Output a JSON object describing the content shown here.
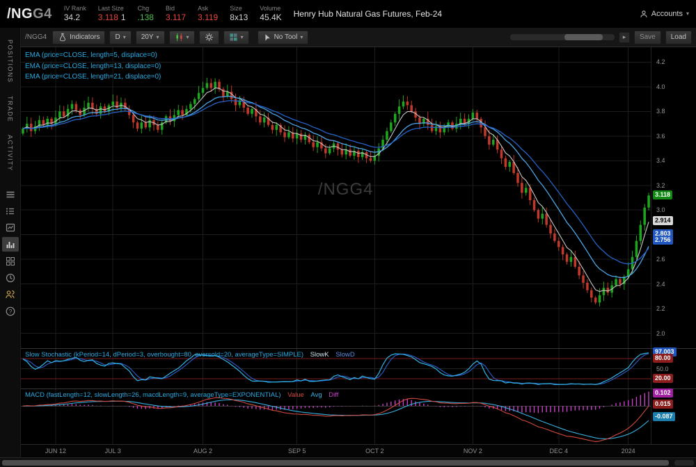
{
  "quote_bar": {
    "symbol_root": "/NG",
    "symbol_suffix": "G4",
    "fields": [
      {
        "label": "IV Rank",
        "parts": [
          {
            "text": "34.2",
            "color": "#d4d4d4"
          }
        ]
      },
      {
        "label": "Last Size",
        "parts": [
          {
            "text": "3.118",
            "color": "#e8463c"
          },
          {
            "text": "1",
            "color": "#d4d4d4"
          }
        ]
      },
      {
        "label": "Chg",
        "parts": [
          {
            "text": ".138",
            "color": "#4fbf4f"
          }
        ]
      },
      {
        "label": "Bid",
        "parts": [
          {
            "text": "3.117",
            "color": "#e8463c"
          }
        ]
      },
      {
        "label": "Ask",
        "parts": [
          {
            "text": "3.119",
            "color": "#e8463c"
          }
        ]
      },
      {
        "label": "Size",
        "parts": [
          {
            "text": "8x13",
            "color": "#d4d4d4"
          }
        ]
      },
      {
        "label": "Volume",
        "parts": [
          {
            "text": "45.4K",
            "color": "#d4d4d4"
          }
        ]
      }
    ],
    "description": "Henry Hub Natural Gas Futures, Feb-24",
    "accounts_label": "Accounts"
  },
  "toolbar": {
    "symbol_label": "/NGG4",
    "indicators_label": "Indicators",
    "timeframe_label": "D",
    "range_label": "20Y",
    "tool_label": "No Tool",
    "save_label": "Save",
    "load_label": "Load"
  },
  "sidebar": {
    "tabs": [
      {
        "label": "POSITIONS"
      },
      {
        "label": "TRADE"
      },
      {
        "label": "ACTIVITY"
      }
    ]
  },
  "studies": {
    "ema_labels": [
      "EMA (price=CLOSE, length=5, displace=0)",
      "EMA (price=CLOSE, length=13, displace=0)",
      "EMA (price=CLOSE, length=21, displace=0)"
    ],
    "stoch_label": "Slow Stochastic (kPeriod=14, dPeriod=3, overbought=80, oversold=20, averageType=SIMPLE)",
    "stoch_plots": [
      {
        "name": "SlowK",
        "color": "#cfe6f2"
      },
      {
        "name": "SlowD",
        "color": "#5b8ee6"
      }
    ],
    "macd_label": "MACD (fastLength=12, slowLength=26, macdLength=9, averageType=EXPONENTIAL)",
    "macd_plots": [
      {
        "name": "Value",
        "color": "#d24a3e"
      },
      {
        "name": "Avg",
        "color": "#38b2e3"
      },
      {
        "name": "Diff",
        "color": "#cc3fcc"
      }
    ]
  },
  "chart_data": {
    "type": "candlestick",
    "watermark": "/NGG4",
    "price_range": [
      1.88,
      4.32
    ],
    "colors": {
      "up": "#1fa51f",
      "down": "#c0392b",
      "ema5": "#c9c9c9",
      "ema13": "#4da6e8",
      "ema21": "#2563c9",
      "grid": "#1d1d1d",
      "stoch_k": "#31b6e7",
      "stoch_d": "#2a5fd0",
      "stoch_level": "#7a2020",
      "macd_value": "#d24a3e",
      "macd_avg": "#38b2e3",
      "macd_diff": "#cc3fcc"
    },
    "price_axis_ticks": [
      4.2,
      4.0,
      3.8,
      3.6,
      3.4,
      3.2,
      3.0,
      2.8,
      2.6,
      2.4,
      2.2,
      2.0
    ],
    "price_badges": [
      {
        "text": "3.118",
        "value": 3.118,
        "bg": "#128912",
        "fg": "#ffffff"
      },
      {
        "text": "2.914",
        "value": 2.914,
        "bg": "#d8d8d8",
        "fg": "#000000"
      },
      {
        "text": "2.803",
        "value": 2.803,
        "bg": "#2057c0",
        "fg": "#ffffff"
      },
      {
        "text": "2.756",
        "value": 2.756,
        "bg": "#2057c0",
        "fg": "#ffffff"
      }
    ],
    "x_ticks": [
      {
        "label": "JUN 12",
        "index": 8
      },
      {
        "label": "JUL 3",
        "index": 22
      },
      {
        "label": "AUG 2",
        "index": 44
      },
      {
        "label": "SEP 5",
        "index": 67
      },
      {
        "label": "OCT 2",
        "index": 86
      },
      {
        "label": "NOV 2",
        "index": 110
      },
      {
        "label": "DEC 4",
        "index": 131
      },
      {
        "label": "2024",
        "index": 148
      }
    ],
    "first_open": 3.62,
    "closes": [
      3.66,
      3.7,
      3.64,
      3.68,
      3.73,
      3.69,
      3.74,
      3.7,
      3.75,
      3.8,
      3.76,
      3.82,
      3.86,
      3.81,
      3.77,
      3.83,
      3.87,
      3.82,
      3.78,
      3.84,
      3.8,
      3.85,
      3.88,
      3.83,
      3.87,
      3.82,
      3.77,
      3.71,
      3.66,
      3.71,
      3.67,
      3.73,
      3.69,
      3.65,
      3.71,
      3.76,
      3.72,
      3.77,
      3.81,
      3.77,
      3.82,
      3.86,
      3.9,
      3.95,
      3.99,
      4.03,
      3.99,
      4.04,
      3.98,
      3.92,
      3.96,
      3.9,
      3.85,
      3.89,
      3.83,
      3.78,
      3.82,
      3.76,
      3.71,
      3.75,
      3.69,
      3.65,
      3.69,
      3.63,
      3.59,
      3.63,
      3.58,
      3.62,
      3.57,
      3.61,
      3.55,
      3.51,
      3.55,
      3.5,
      3.46,
      3.5,
      3.54,
      3.49,
      3.45,
      3.49,
      3.44,
      3.48,
      3.43,
      3.47,
      3.42,
      3.4,
      3.44,
      3.5,
      3.57,
      3.64,
      3.71,
      3.78,
      3.84,
      3.88,
      3.85,
      3.8,
      3.75,
      3.7,
      3.74,
      3.69,
      3.64,
      3.68,
      3.63,
      3.67,
      3.71,
      3.66,
      3.7,
      3.74,
      3.7,
      3.74,
      3.79,
      3.74,
      3.67,
      3.6,
      3.53,
      3.57,
      3.49,
      3.42,
      3.35,
      3.39,
      3.3,
      3.22,
      3.14,
      3.18,
      3.08,
      3.0,
      2.93,
      2.97,
      2.88,
      2.81,
      2.75,
      2.7,
      2.64,
      2.58,
      2.62,
      2.54,
      2.47,
      2.41,
      2.35,
      2.29,
      2.25,
      2.31,
      2.37,
      2.33,
      2.39,
      2.44,
      2.4,
      2.46,
      2.52,
      2.62,
      2.75,
      2.88,
      3.02,
      3.118
    ],
    "stoch_axis": {
      "mid_tick": "50.0",
      "overbought": 80,
      "oversold": 20,
      "badges": [
        {
          "text": "97.003",
          "value": 97.0,
          "bg": "#2057c0",
          "fg": "#ffffff"
        },
        {
          "text": "80.00",
          "value": 80,
          "bg": "#8b1d1d",
          "fg": "#ffffff"
        },
        {
          "text": "20.00",
          "value": 20,
          "bg": "#8b1d1d",
          "fg": "#ffffff"
        }
      ]
    },
    "macd_axis": {
      "zero_tick": "0.0",
      "badges": [
        {
          "text": "0.102",
          "value": 0.102,
          "bg": "#a21fa2",
          "fg": "#ffffff"
        },
        {
          "text": "0.015",
          "value": 0.015,
          "bg": "#8b1d1d",
          "fg": "#ffffff"
        },
        {
          "text": "-0.087",
          "value": -0.087,
          "bg": "#1b7fae",
          "fg": "#ffffff"
        }
      ]
    }
  }
}
